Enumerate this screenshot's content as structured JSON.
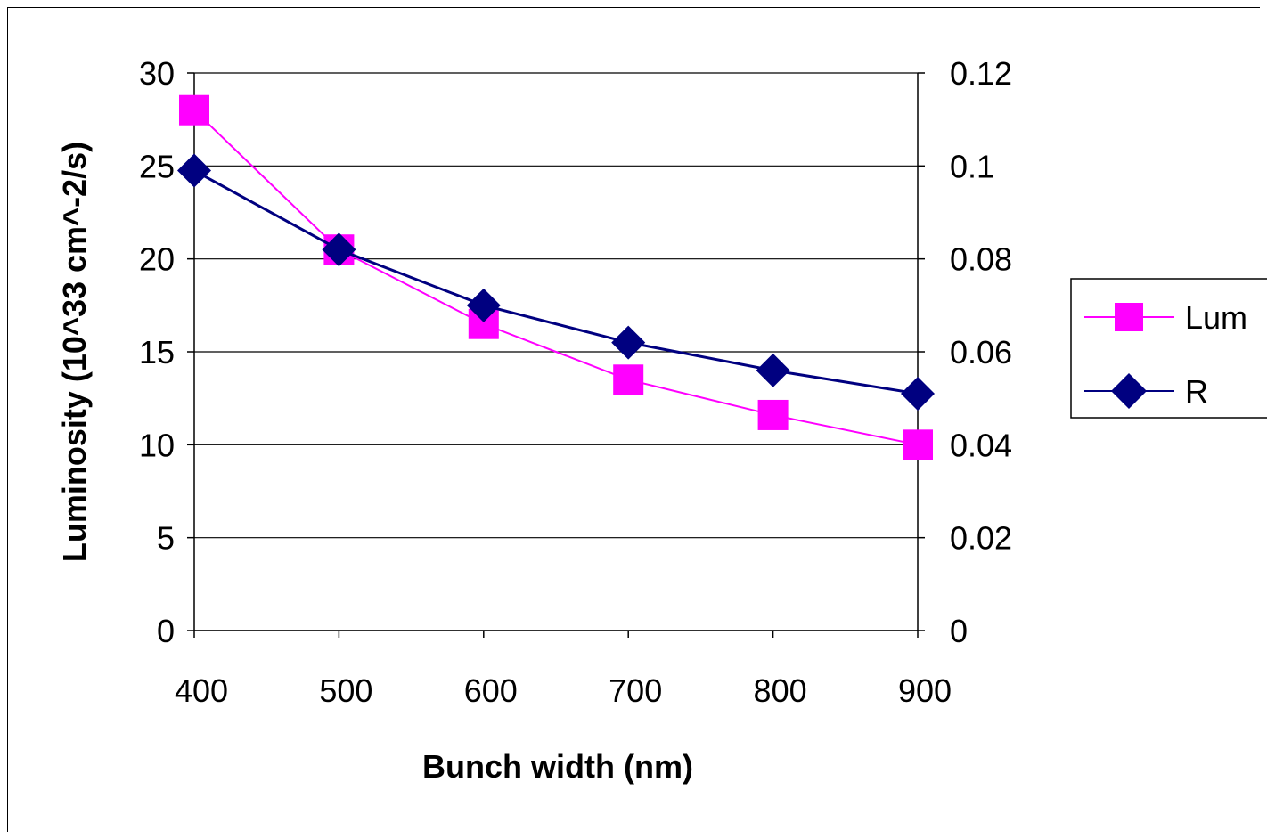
{
  "chart_data": {
    "type": "line",
    "x": [
      400,
      500,
      600,
      700,
      800,
      900
    ],
    "xlabel": "Bunch width (nm)",
    "ylabel": "Luminosity (10^33 cm^-2/s)",
    "xlim": [
      400,
      900
    ],
    "ylim": [
      0,
      30
    ],
    "y2lim": [
      0,
      0.12
    ],
    "x_ticks": [
      "400",
      "500",
      "600",
      "700",
      "800",
      "900"
    ],
    "y_ticks": [
      "0",
      "5",
      "10",
      "15",
      "20",
      "25",
      "30"
    ],
    "y2_ticks": [
      "0",
      "0.02",
      "0.04",
      "0.06",
      "0.08",
      "0.1",
      "0.12"
    ],
    "grid": "horizontal",
    "legend_position": "right",
    "series": [
      {
        "name": "Lum",
        "axis": "left",
        "color": "#ff00ff",
        "marker": "square",
        "values": [
          28.0,
          20.5,
          16.5,
          13.5,
          11.6,
          10.0
        ]
      },
      {
        "name": "R",
        "axis": "right",
        "color": "#000080",
        "marker": "diamond",
        "values": [
          0.099,
          0.082,
          0.07,
          0.062,
          0.056,
          0.051
        ]
      }
    ]
  }
}
